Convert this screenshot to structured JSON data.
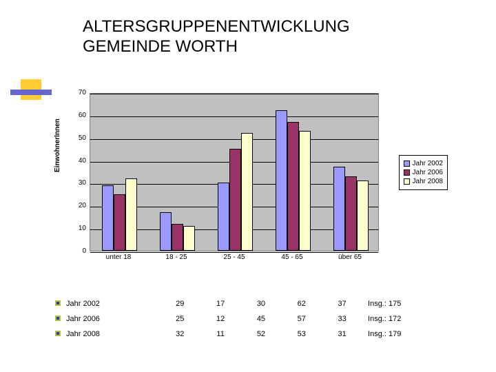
{
  "title_line1": "ALTERSGRUPPENENTWICKLUNG",
  "title_line2": "GEMEINDE WORTH",
  "chart": {
    "type": "bar",
    "ylabel": "EinwohnerInnen",
    "ylim": [
      0,
      70
    ],
    "ytick_step": 10,
    "categories": [
      "unter 18",
      "18 - 25",
      "25 - 45",
      "45 - 65",
      "über 65"
    ],
    "series": [
      {
        "name": "Jahr 2002",
        "color": "#9999ff",
        "values": [
          29,
          17,
          30,
          62,
          37
        ]
      },
      {
        "name": "Jahr 2006",
        "color": "#993366",
        "values": [
          25,
          12,
          45,
          57,
          33
        ]
      },
      {
        "name": "Jahr 2008",
        "color": "#ffffcc",
        "values": [
          32,
          11,
          52,
          53,
          31
        ]
      }
    ],
    "background_color": "#c0c0c0",
    "grid_color": "#000000",
    "bar_border": "#000000"
  },
  "table": {
    "rows": [
      {
        "label": "Jahr 2002",
        "cells": [
          "29",
          "17",
          "30",
          "62",
          "37"
        ],
        "total": "Insg.: 175"
      },
      {
        "label": "Jahr 2006",
        "cells": [
          "25",
          "12",
          "45",
          "57",
          "33"
        ],
        "total": "Insg.: 172"
      },
      {
        "label": "Jahr 2008",
        "cells": [
          "32",
          "11",
          "52",
          "53",
          "31"
        ],
        "total": "Insg.: 179"
      }
    ]
  }
}
